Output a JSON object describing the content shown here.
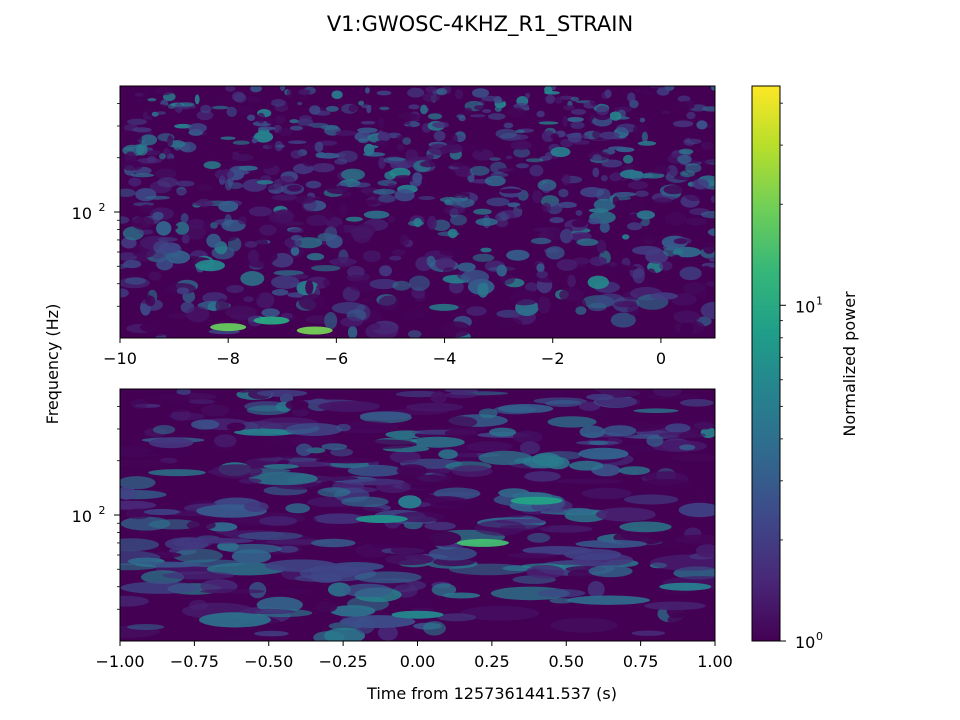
{
  "chart_data": [
    {
      "type": "heatmap",
      "title": "V1:GWOSC-4KHZ_R1_STRAIN",
      "ylabel": "Frequency (Hz)",
      "xlim": [
        -10,
        1
      ],
      "ylim": [
        20,
        500
      ],
      "yscale": "log",
      "x_ticks": [
        "−10",
        "−8",
        "−6",
        "−4",
        "−2",
        "0"
      ],
      "x_tick_values": [
        -10,
        -8,
        -6,
        -4,
        -2,
        0
      ],
      "y_ticks": [
        {
          "base": "10",
          "exp": "2"
        }
      ],
      "y_tick_values": [
        100
      ],
      "colormap": "viridis",
      "hot_spots": [
        {
          "t": -8.0,
          "f": 23,
          "power": 18
        },
        {
          "t": -6.4,
          "f": 22,
          "power": 20
        },
        {
          "t": -7.2,
          "f": 25,
          "power": 10
        }
      ]
    },
    {
      "type": "heatmap",
      "xlabel": "Time from 1257361441.537 (s)",
      "xlim": [
        -1.0,
        1.0
      ],
      "ylim": [
        20,
        500
      ],
      "yscale": "log",
      "x_ticks": [
        "−1.00",
        "−0.75",
        "−0.50",
        "−0.25",
        "0.00",
        "0.25",
        "0.50",
        "0.75",
        "1.00"
      ],
      "x_tick_values": [
        -1.0,
        -0.75,
        -0.5,
        -0.25,
        0.0,
        0.25,
        0.5,
        0.75,
        1.0
      ],
      "y_ticks": [
        {
          "base": "10",
          "exp": "2"
        }
      ],
      "y_tick_values": [
        100
      ],
      "colormap": "viridis",
      "hot_spots": [
        {
          "t": 0.22,
          "f": 70,
          "power": 14
        },
        {
          "t": 0.4,
          "f": 120,
          "power": 9
        },
        {
          "t": -0.12,
          "f": 95,
          "power": 7
        },
        {
          "t": 0.0,
          "f": 28,
          "power": 6
        },
        {
          "t": 0.9,
          "f": 40,
          "power": 5
        }
      ]
    }
  ],
  "colorbar": {
    "label": "Normalized power",
    "scale": "log",
    "range": [
      1,
      45
    ],
    "ticks": [
      {
        "base": "10",
        "exp": "0",
        "value": 1
      },
      {
        "base": "10",
        "exp": "1",
        "value": 10
      }
    ],
    "colors": [
      "#440154",
      "#482878",
      "#3e4989",
      "#31688e",
      "#26828e",
      "#1f9e89",
      "#35b779",
      "#6ece58",
      "#b5de2b",
      "#fde725"
    ]
  }
}
